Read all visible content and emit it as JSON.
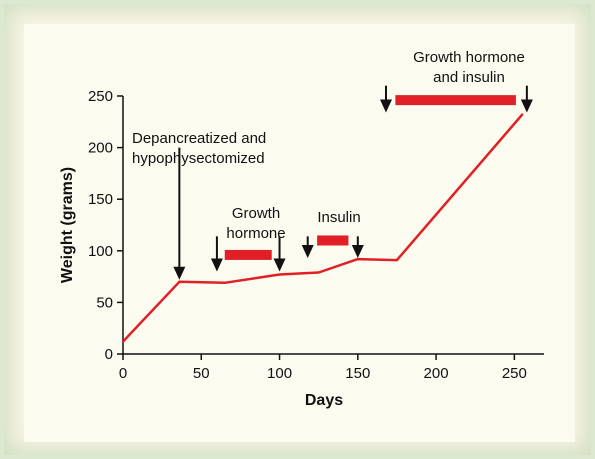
{
  "colors": {
    "line": "#e11f26",
    "treatment_bar": "#e11f26",
    "arrow": "#111111",
    "panel_background": "#fcfbf0",
    "frame": "#d6e4c8"
  },
  "chart_data": {
    "type": "line",
    "title": "",
    "xlabel": "Days",
    "ylabel": "Weight (grams)",
    "xlim": [
      0,
      260
    ],
    "ylim": [
      0,
      250
    ],
    "x_ticks": [
      0,
      50,
      100,
      150,
      200,
      250
    ],
    "y_ticks": [
      0,
      50,
      100,
      150,
      200,
      250
    ],
    "grid": false,
    "legend": "none",
    "series": [
      {
        "x": [
          0,
          36,
          65,
          100,
          125,
          150,
          175,
          255
        ],
        "y": [
          12,
          70,
          69,
          77,
          79,
          92,
          91,
          232
        ]
      }
    ],
    "annotations": [
      {
        "lines": [
          "Depancreatized and",
          "hypophysectomized"
        ],
        "arrows": [
          {
            "x": 36,
            "y_from": 200,
            "y_to": 72
          }
        ]
      },
      {
        "lines": [
          "Growth",
          "hormone"
        ],
        "arrows": [
          {
            "x": 60,
            "y_from": 114,
            "y_to": 80
          },
          {
            "x": 100,
            "y_from": 114,
            "y_to": 80
          }
        ],
        "bar": {
          "x_start": 65,
          "x_end": 95,
          "y": 96
        }
      },
      {
        "lines": [
          "Insulin"
        ],
        "arrows": [
          {
            "x": 118,
            "y_from": 114,
            "y_to": 93
          },
          {
            "x": 150,
            "y_from": 114,
            "y_to": 93
          }
        ],
        "bar": {
          "x_start": 124,
          "x_end": 144,
          "y": 110
        }
      },
      {
        "lines": [
          "Growth hormone",
          "and insulin"
        ],
        "arrows": [
          {
            "x": 168,
            "y_from": 260,
            "y_to": 234
          },
          {
            "x": 258,
            "y_from": 260,
            "y_to": 234
          }
        ],
        "bar": {
          "x_start": 174,
          "x_end": 251,
          "y": 246
        }
      }
    ]
  }
}
